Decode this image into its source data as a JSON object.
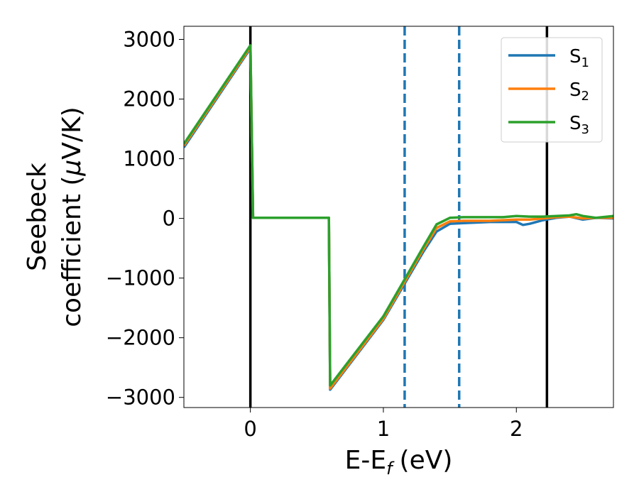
{
  "chart_data": {
    "type": "line",
    "xlabel": "E-E",
    "xlabel_sub": "f",
    "xlabel_unit": "(eV)",
    "ylabel_line1": "Seebeck",
    "ylabel_line2": "coefficient  (",
    "ylabel_mu": "μ",
    "ylabel_line2_end": "V/K)",
    "xlim": [
      -0.5,
      2.73
    ],
    "ylim": [
      -3170,
      3220
    ],
    "x_ticks": [
      0,
      1,
      2
    ],
    "x_tick_labels": [
      "0",
      "1",
      "2"
    ],
    "y_ticks": [
      3000,
      2000,
      1000,
      0,
      -1000,
      -2000,
      -3000
    ],
    "y_tick_labels": [
      "3000",
      "2000",
      "1000",
      "0",
      "−1000",
      "−2000",
      "−3000"
    ],
    "grid": false,
    "legend_position": "top-right",
    "vlines": [
      {
        "x": 0.0,
        "style": "solid",
        "color": "#000000"
      },
      {
        "x": 2.23,
        "style": "solid",
        "color": "#000000"
      },
      {
        "x": 1.16,
        "style": "dashed",
        "color": "#1f77b4"
      },
      {
        "x": 1.57,
        "style": "dashed",
        "color": "#1f77b4"
      }
    ],
    "series": [
      {
        "name": "S",
        "sub": "1",
        "color": "#1f77b4",
        "x": [
          -0.5,
          0.0,
          0.02,
          0.59,
          0.6,
          1.0,
          1.3,
          1.4,
          1.5,
          1.6,
          1.8,
          1.9,
          2.0,
          2.05,
          2.1,
          2.2,
          2.3,
          2.4,
          2.5,
          2.6,
          2.73
        ],
        "y": [
          1190,
          2850,
          10,
          10,
          -2870,
          -1700,
          -560,
          -220,
          -90,
          -80,
          -60,
          -60,
          -60,
          -110,
          -90,
          -30,
          10,
          30,
          -20,
          10,
          0
        ]
      },
      {
        "name": "S",
        "sub": "2",
        "color": "#ff7f0e",
        "x": [
          -0.5,
          0.0,
          0.02,
          0.59,
          0.6,
          1.0,
          1.3,
          1.4,
          1.5,
          1.6,
          1.8,
          1.9,
          2.0,
          2.1,
          2.2,
          2.3,
          2.4,
          2.5,
          2.6,
          2.73
        ],
        "y": [
          1220,
          2870,
          10,
          10,
          -2850,
          -1680,
          -520,
          -160,
          -50,
          -40,
          -40,
          -30,
          -20,
          -20,
          0,
          20,
          30,
          0,
          10,
          10
        ]
      },
      {
        "name": "S",
        "sub": "3",
        "color": "#2ca02c",
        "x": [
          -0.5,
          0.0,
          0.02,
          0.59,
          0.6,
          1.0,
          1.3,
          1.4,
          1.5,
          1.6,
          1.8,
          1.9,
          2.0,
          2.1,
          2.2,
          2.3,
          2.4,
          2.45,
          2.5,
          2.6,
          2.73
        ],
        "y": [
          1250,
          2900,
          10,
          10,
          -2800,
          -1640,
          -480,
          -100,
          10,
          20,
          20,
          20,
          40,
          30,
          30,
          40,
          50,
          70,
          40,
          10,
          40
        ]
      }
    ]
  }
}
